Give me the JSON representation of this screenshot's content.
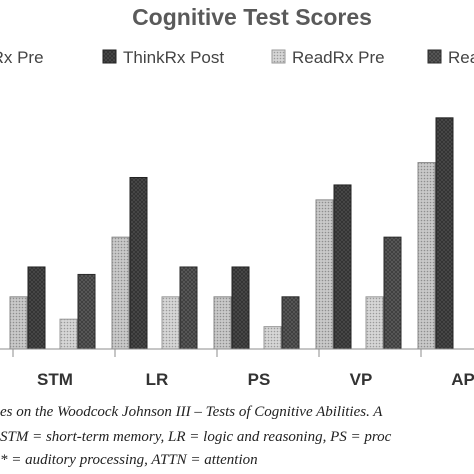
{
  "chart_data": {
    "type": "bar",
    "title": "Cognitive Test Scores",
    "categories": [
      "STM",
      "LR",
      "PS",
      "VP",
      "AP"
    ],
    "series": [
      {
        "name": "ThinkRx Pre",
        "values": [
          92,
          100,
          92,
          105,
          110
        ]
      },
      {
        "name": "ThinkRx Post",
        "values": [
          96,
          108,
          96,
          107,
          116
        ]
      },
      {
        "name": "ReadRx Pre",
        "values": [
          89,
          92,
          88,
          92,
          null
        ]
      },
      {
        "name": "ReadRx Post",
        "values": [
          95,
          96,
          92,
          100,
          null
        ]
      }
    ],
    "ylim": [
      85,
      120
    ],
    "legend": "top",
    "grid": false,
    "colors": [
      "#b4b4b4",
      "#4a4a4a",
      "#c8c8c8",
      "#5e5e5e"
    ]
  },
  "caption": {
    "line1": "es on the Woodcock Johnson III – Tests of Cognitive Abilities.  A",
    "line2": "STM = short-term memory, LR = logic and reasoning, PS = proc",
    "line3": "* = auditory processing, ATTN = attention"
  }
}
